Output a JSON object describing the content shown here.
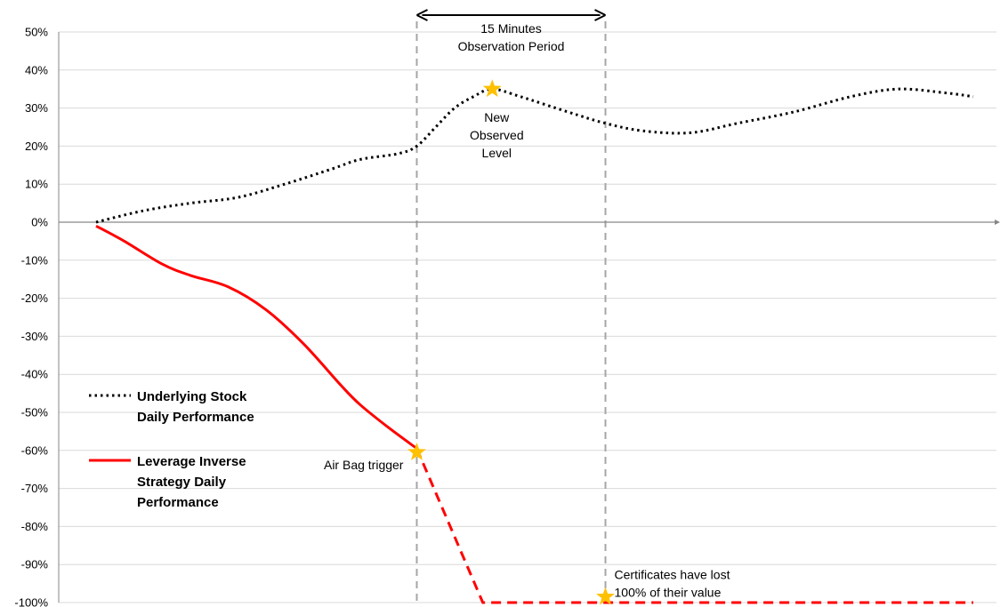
{
  "chart_data": {
    "type": "line",
    "y_axis": {
      "min": -100,
      "max": 50,
      "step": 10,
      "tick_labels": [
        "50%",
        "40%",
        "30%",
        "20%",
        "10%",
        "0%",
        "-10%",
        "-20%",
        "-30%",
        "-40%",
        "-50%",
        "-60%",
        "-70%",
        "-80%",
        "-90%",
        "-100%"
      ]
    },
    "x_axis": {
      "min": 0,
      "max": 100
    },
    "grid": true,
    "series": [
      {
        "name_lines": [
          "Underlying Stock",
          "Daily Performance"
        ],
        "style": "dotted",
        "color": "#000000",
        "points": [
          [
            0,
            0
          ],
          [
            5,
            3
          ],
          [
            10,
            5
          ],
          [
            15,
            6.5
          ],
          [
            20,
            10
          ],
          [
            25,
            14
          ],
          [
            28,
            16.5
          ],
          [
            32,
            18
          ],
          [
            34,
            20
          ],
          [
            36,
            25
          ],
          [
            38,
            30
          ],
          [
            40,
            33
          ],
          [
            42,
            35
          ],
          [
            45,
            33
          ],
          [
            50,
            29
          ],
          [
            54,
            26
          ],
          [
            58,
            24
          ],
          [
            63,
            23.5
          ],
          [
            68,
            26
          ],
          [
            74,
            29
          ],
          [
            80,
            33
          ],
          [
            85,
            35
          ],
          [
            90,
            34
          ],
          [
            93,
            33
          ]
        ]
      },
      {
        "name_lines": [
          "Leverage Inverse",
          "Strategy Daily",
          "Performance"
        ],
        "style": "solid",
        "color": "#ff0000",
        "points": [
          [
            0,
            -1
          ],
          [
            3,
            -5
          ],
          [
            7,
            -11
          ],
          [
            10,
            -14
          ],
          [
            14,
            -17
          ],
          [
            18,
            -23
          ],
          [
            22,
            -32
          ],
          [
            26,
            -43
          ],
          [
            28,
            -48
          ],
          [
            31,
            -54
          ],
          [
            34,
            -59.5
          ]
        ]
      },
      {
        "name_lines": [],
        "style": "dashed",
        "color": "#ff0000",
        "points": [
          [
            34,
            -59.5
          ],
          [
            41,
            -100
          ],
          [
            93,
            -100
          ]
        ]
      }
    ],
    "vertical_markers": [
      34,
      54
    ],
    "period_arrow": {
      "from": 34,
      "to": 54,
      "label_lines": [
        "15 Minutes",
        "Observation Period"
      ]
    },
    "star_markers": [
      {
        "x": 42,
        "y": 35,
        "label_lines": [
          "New",
          "Observed",
          "Level"
        ]
      },
      {
        "x": 34,
        "y": -60.5,
        "label_lines": [
          "Air Bag trigger"
        ]
      },
      {
        "x": 54,
        "y": -98.5,
        "label_lines": [
          "Certificates have lost",
          "100% of their value"
        ]
      }
    ],
    "legend_position": "left",
    "colors": {
      "star": "#ffc000",
      "grid": "#d9d9d9",
      "axis": "#868686",
      "marker_line": "#a6a6a6"
    }
  }
}
